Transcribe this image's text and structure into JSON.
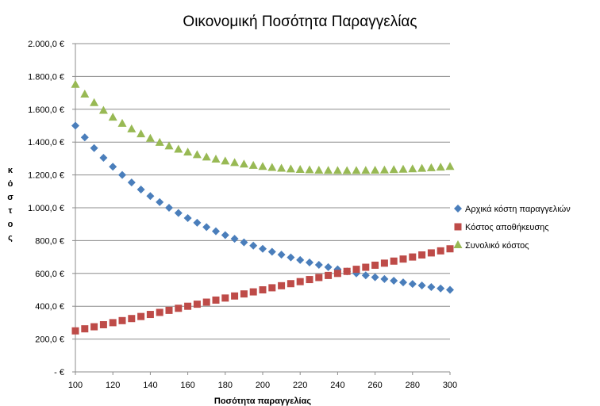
{
  "chart_data": {
    "type": "scatter",
    "title": "Οικονομική Ποσότητα Παραγγελίας",
    "xlabel": "Ποσότητα παραγγελίας",
    "ylabel": "κόστος",
    "xlim": [
      100,
      300
    ],
    "ylim": [
      0,
      2000
    ],
    "x_ticks": [
      100,
      120,
      140,
      160,
      180,
      200,
      220,
      240,
      260,
      280,
      300
    ],
    "x_tick_labels": [
      "100",
      "120",
      "140",
      "160",
      "180",
      "200",
      "220",
      "240",
      "260",
      "280",
      "300"
    ],
    "y_ticks": [
      0,
      200,
      400,
      600,
      800,
      1000,
      1200,
      1400,
      1600,
      1800,
      2000
    ],
    "y_tick_labels": [
      "-  €",
      "200,0 €",
      "400,0 €",
      "600,0 €",
      "800,0 €",
      "1.000,0 €",
      "1.200,0 €",
      "1.400,0 €",
      "1.600,0 €",
      "1.800,0 €",
      "2.000,0 €"
    ],
    "grid": "horizontal",
    "legend_position": "right",
    "x": [
      100,
      105,
      110,
      115,
      120,
      125,
      130,
      135,
      140,
      145,
      150,
      155,
      160,
      165,
      170,
      175,
      180,
      185,
      190,
      195,
      200,
      205,
      210,
      215,
      220,
      225,
      230,
      235,
      240,
      245,
      250,
      255,
      260,
      265,
      270,
      275,
      280,
      285,
      290,
      295,
      300
    ],
    "series": [
      {
        "name": "Αρχικά κόστη παραγγελιών",
        "marker": "diamond",
        "color": "#4a7ebb",
        "values": [
          1500,
          1428.6,
          1363.6,
          1304.3,
          1250,
          1200,
          1153.8,
          1111.1,
          1071.4,
          1034.5,
          1000,
          967.7,
          937.5,
          909.1,
          882.4,
          857.1,
          833.3,
          810.8,
          789.5,
          769.2,
          750,
          731.7,
          714.3,
          697.7,
          681.8,
          666.7,
          652.2,
          638.3,
          625,
          612.2,
          600,
          588.2,
          576.9,
          566,
          555.6,
          545.5,
          535.7,
          526.3,
          517.2,
          508.5,
          500
        ]
      },
      {
        "name": "Κόστος αποθήκευσης",
        "marker": "square",
        "color": "#be4b48",
        "values": [
          250,
          262.5,
          275,
          287.5,
          300,
          312.5,
          325,
          337.5,
          350,
          362.5,
          375,
          387.5,
          400,
          412.5,
          425,
          437.5,
          450,
          462.5,
          475,
          487.5,
          500,
          512.5,
          525,
          537.5,
          550,
          562.5,
          575,
          587.5,
          600,
          612.5,
          625,
          637.5,
          650,
          662.5,
          675,
          687.5,
          700,
          712.5,
          725,
          737.5,
          750
        ]
      },
      {
        "name": "Συνολικό κόστος",
        "marker": "triangle",
        "color": "#98b954",
        "values": [
          1750,
          1691.1,
          1638.6,
          1591.8,
          1550,
          1512.5,
          1478.8,
          1448.6,
          1421.4,
          1397,
          1375,
          1355.2,
          1337.5,
          1321.6,
          1307.4,
          1294.6,
          1283.3,
          1273.3,
          1264.5,
          1256.7,
          1250,
          1244.2,
          1239.3,
          1235.2,
          1231.8,
          1229.2,
          1227.2,
          1225.8,
          1225,
          1224.7,
          1225,
          1225.7,
          1226.9,
          1228.5,
          1230.6,
          1233,
          1235.7,
          1238.8,
          1242.2,
          1246,
          1250
        ]
      }
    ]
  }
}
